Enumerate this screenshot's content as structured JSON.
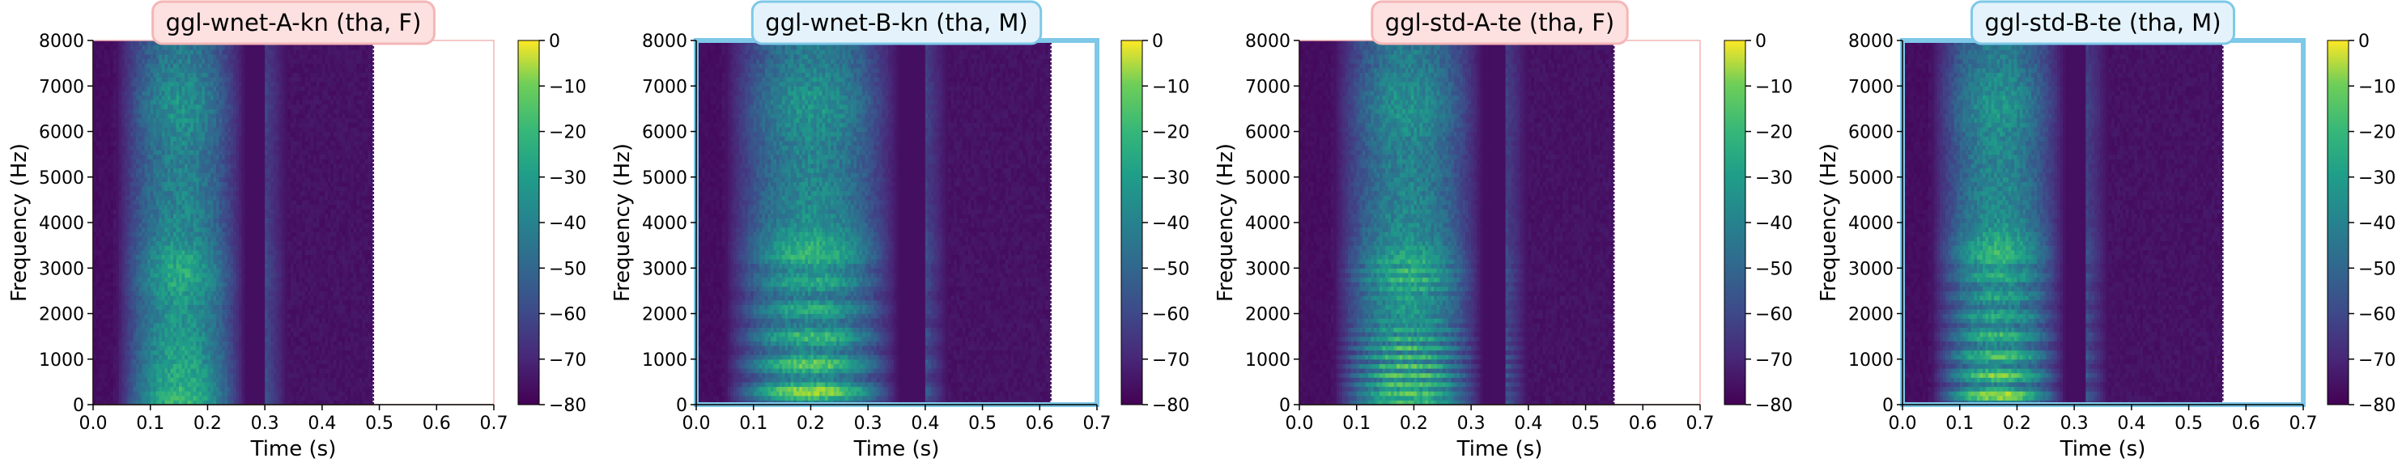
{
  "colors": {
    "female_accent": "#f4b6b6",
    "female_fill": "#fde0e0",
    "male_accent": "#7ec8e8",
    "male_fill": "#e4f3fb",
    "viridis_low": "#440154",
    "viridis_high": "#fde725"
  },
  "chart_data": [
    {
      "type": "heatmap",
      "title": "ggl-wnet-A-kn (tha, F)",
      "speaker_gender": "F",
      "xlabel": "Time (s)",
      "ylabel": "Frequency (Hz)",
      "xlim": [
        0.0,
        0.7
      ],
      "ylim": [
        0,
        8000
      ],
      "x_ticks": [
        "0.0",
        "0.1",
        "0.2",
        "0.3",
        "0.4",
        "0.5",
        "0.6",
        "0.7"
      ],
      "y_ticks": [
        "0",
        "1000",
        "2000",
        "3000",
        "4000",
        "5000",
        "6000",
        "7000",
        "8000"
      ],
      "audio_duration_s": 0.49,
      "speech_start_s": 0.04,
      "speech_end_s": 0.3,
      "pitch_hz": 200,
      "colorbar": {
        "min": -80,
        "max": 0,
        "ticks": [
          "0",
          "−10",
          "−20",
          "−30",
          "−40",
          "−50",
          "−60",
          "−70",
          "−80"
        ]
      }
    },
    {
      "type": "heatmap",
      "title": "ggl-wnet-B-kn (tha, M)",
      "speaker_gender": "M",
      "xlabel": "Time (s)",
      "ylabel": "Frequency (Hz)",
      "xlim": [
        0.0,
        0.7
      ],
      "ylim": [
        0,
        8000
      ],
      "x_ticks": [
        "0.0",
        "0.1",
        "0.2",
        "0.3",
        "0.4",
        "0.5",
        "0.6",
        "0.7"
      ],
      "y_ticks": [
        "0",
        "1000",
        "2000",
        "3000",
        "4000",
        "5000",
        "6000",
        "7000",
        "8000"
      ],
      "audio_duration_s": 0.62,
      "speech_start_s": 0.05,
      "speech_end_s": 0.4,
      "pitch_hz": 120,
      "colorbar": {
        "min": -80,
        "max": 0,
        "ticks": [
          "0",
          "−10",
          "−20",
          "−30",
          "−40",
          "−50",
          "−60",
          "−70",
          "−80"
        ]
      }
    },
    {
      "type": "heatmap",
      "title": "ggl-std-A-te (tha, F)",
      "speaker_gender": "F",
      "xlabel": "Time (s)",
      "ylabel": "Frequency (Hz)",
      "xlim": [
        0.0,
        0.7
      ],
      "ylim": [
        0,
        8000
      ],
      "x_ticks": [
        "0.0",
        "0.1",
        "0.2",
        "0.3",
        "0.4",
        "0.5",
        "0.6",
        "0.7"
      ],
      "y_ticks": [
        "0",
        "1000",
        "2000",
        "3000",
        "4000",
        "5000",
        "6000",
        "7000",
        "8000"
      ],
      "audio_duration_s": 0.55,
      "speech_start_s": 0.06,
      "speech_end_s": 0.36,
      "pitch_hz": 210,
      "colorbar": {
        "min": -80,
        "max": 0,
        "ticks": [
          "0",
          "−10",
          "−20",
          "−30",
          "−40",
          "−50",
          "−60",
          "−70",
          "−80"
        ]
      }
    },
    {
      "type": "heatmap",
      "title": "ggl-std-B-te (tha, M)",
      "speaker_gender": "M",
      "xlabel": "Time (s)",
      "ylabel": "Frequency (Hz)",
      "xlim": [
        0.0,
        0.7
      ],
      "ylim": [
        0,
        8000
      ],
      "x_ticks": [
        "0.0",
        "0.1",
        "0.2",
        "0.3",
        "0.4",
        "0.5",
        "0.6",
        "0.7"
      ],
      "y_ticks": [
        "0",
        "1000",
        "2000",
        "3000",
        "4000",
        "5000",
        "6000",
        "7000",
        "8000"
      ],
      "audio_duration_s": 0.56,
      "speech_start_s": 0.05,
      "speech_end_s": 0.32,
      "pitch_hz": 130,
      "colorbar": {
        "min": -80,
        "max": 0,
        "ticks": [
          "0",
          "−10",
          "−20",
          "−30",
          "−40",
          "−50",
          "−60",
          "−70",
          "−80"
        ]
      }
    }
  ]
}
